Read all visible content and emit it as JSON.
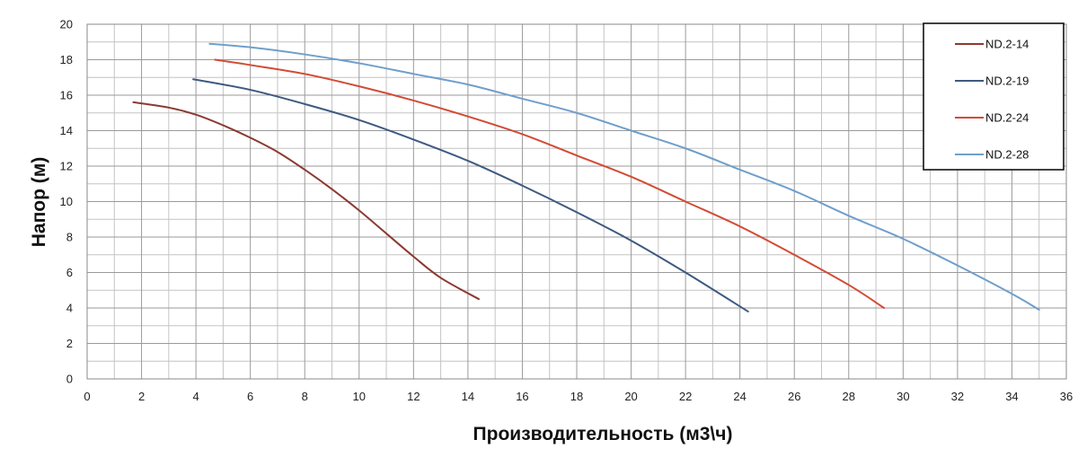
{
  "chart_data": {
    "type": "line",
    "title": "",
    "xlabel": "Производительность (м3\\ч)",
    "ylabel": "Напор (м)",
    "xlim": [
      0,
      36
    ],
    "ylim": [
      0,
      20
    ],
    "x_major_step": 2,
    "x_minor_step": 1,
    "y_major_step": 2,
    "y_minor_step": 1,
    "grid": true,
    "legend_position": "top-right",
    "series": [
      {
        "name": "ND.2-14",
        "color": "#8B3A32",
        "points": [
          [
            1.7,
            15.6
          ],
          [
            3,
            15.3
          ],
          [
            4,
            14.9
          ],
          [
            5,
            14.3
          ],
          [
            6,
            13.6
          ],
          [
            7,
            12.8
          ],
          [
            8,
            11.8
          ],
          [
            9,
            10.7
          ],
          [
            10,
            9.5
          ],
          [
            11,
            8.2
          ],
          [
            12,
            6.9
          ],
          [
            13,
            5.7
          ],
          [
            14.4,
            4.5
          ]
        ]
      },
      {
        "name": "ND.2-19",
        "color": "#3D5A80",
        "points": [
          [
            3.9,
            16.9
          ],
          [
            6,
            16.3
          ],
          [
            8,
            15.5
          ],
          [
            10,
            14.6
          ],
          [
            12,
            13.5
          ],
          [
            14,
            12.3
          ],
          [
            16,
            10.9
          ],
          [
            18,
            9.4
          ],
          [
            20,
            7.8
          ],
          [
            22,
            6.0
          ],
          [
            24.3,
            3.8
          ]
        ]
      },
      {
        "name": "ND.2-24",
        "color": "#D24B35",
        "points": [
          [
            4.7,
            18.0
          ],
          [
            6,
            17.7
          ],
          [
            8,
            17.2
          ],
          [
            10,
            16.5
          ],
          [
            12,
            15.7
          ],
          [
            14,
            14.8
          ],
          [
            16,
            13.8
          ],
          [
            18,
            12.6
          ],
          [
            20,
            11.4
          ],
          [
            22,
            10.0
          ],
          [
            24,
            8.6
          ],
          [
            26,
            7.0
          ],
          [
            28,
            5.3
          ],
          [
            29.3,
            4.0
          ]
        ]
      },
      {
        "name": "ND.2-28",
        "color": "#6F9FCB",
        "points": [
          [
            4.5,
            18.9
          ],
          [
            6,
            18.7
          ],
          [
            8,
            18.3
          ],
          [
            10,
            17.8
          ],
          [
            12,
            17.2
          ],
          [
            14,
            16.6
          ],
          [
            16,
            15.8
          ],
          [
            18,
            15.0
          ],
          [
            20,
            14.0
          ],
          [
            22,
            13.0
          ],
          [
            24,
            11.8
          ],
          [
            26,
            10.6
          ],
          [
            28,
            9.2
          ],
          [
            30,
            7.9
          ],
          [
            32,
            6.4
          ],
          [
            34,
            4.8
          ],
          [
            35,
            3.9
          ]
        ]
      }
    ]
  }
}
